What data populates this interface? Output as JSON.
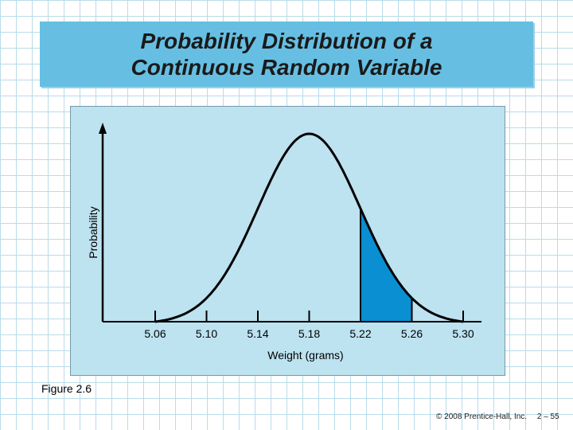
{
  "slide": {
    "title_line1": "Probability Distribution of a",
    "title_line2": "Continuous Random Variable",
    "figure_label": "Figure 2.6",
    "copyright": "© 2008 Prentice-Hall, Inc.",
    "page_number": "2 – 55"
  },
  "colors": {
    "title_background": "#66bfe3",
    "chart_background": "#bde2f0",
    "shaded_area": "#0a8fd2",
    "curve": "#000000"
  },
  "chart_data": {
    "type": "area",
    "title": "",
    "xlabel": "Weight (grams)",
    "ylabel": "Probability",
    "x_ticks": [
      5.06,
      5.1,
      5.14,
      5.18,
      5.22,
      5.26,
      5.3
    ],
    "x_tick_labels": [
      "5.06",
      "5.10",
      "5.14",
      "5.18",
      "5.22",
      "5.26",
      "5.30"
    ],
    "xlim": [
      5.06,
      5.3
    ],
    "distribution": {
      "shape": "normal",
      "mean": 5.18,
      "support": [
        5.06,
        5.3
      ]
    },
    "shaded_region": {
      "from": 5.22,
      "to": 5.26
    },
    "grid": false
  }
}
